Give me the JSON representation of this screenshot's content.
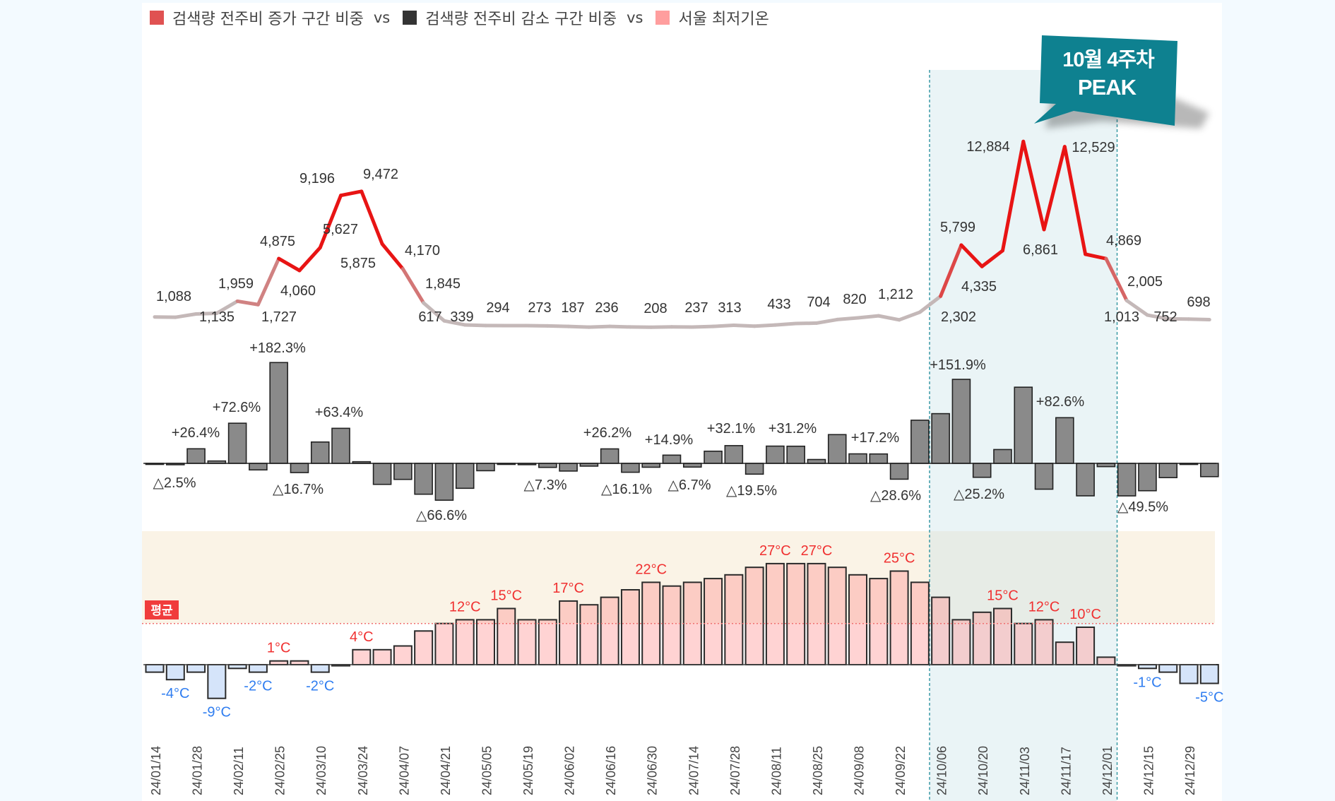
{
  "legend": {
    "items": [
      {
        "label": "검색량 전주비 증가 구간 비중",
        "color": "#e05252"
      },
      {
        "label": "검색량 전주비 감소 구간 비중",
        "color": "#333333"
      },
      {
        "label": "서울 최저기온",
        "color": "#ff9e9e"
      }
    ],
    "separator": "vs"
  },
  "callout": {
    "line1": "10월 4주차",
    "line2": "PEAK",
    "color": "#0e8190"
  },
  "avg_badge": {
    "label": "평균",
    "color": "#f03c3c"
  },
  "colors": {
    "line_high": "#e81414",
    "line_low": "#c4b8b8",
    "bar": "#8a8a8a",
    "temp_pos_label": "#f03030",
    "temp_neg_label": "#2f7df0",
    "highlight": "#3a9aa5"
  },
  "chart_data": [
    {
      "type": "line",
      "title": "검색량",
      "values": [
        883,
        861,
        1088,
        1135,
        1959,
        1727,
        4875,
        4060,
        5627,
        9196,
        9472,
        5875,
        4170,
        1845,
        617,
        339,
        294,
        292,
        287,
        273,
        235,
        187,
        236,
        198,
        181,
        208,
        194,
        237,
        313,
        252,
        331,
        433,
        463,
        704,
        820,
        960,
        685,
        1212,
        2302,
        5799,
        4335,
        5420,
        12884,
        6861,
        12529,
        5175,
        4869,
        2005,
        1013,
        752,
        737,
        698
      ],
      "labels": [
        null,
        null,
        "1,088",
        "1,135",
        "1,959",
        "1,727",
        "4,875",
        "4,060",
        "5,627",
        "9,196",
        "9,472",
        "5,875",
        "4,170",
        "1,845",
        "617",
        "339",
        "294",
        null,
        null,
        "273",
        null,
        "187",
        "236",
        null,
        null,
        "208",
        null,
        "237",
        "313",
        null,
        null,
        "433",
        null,
        "704",
        "820",
        null,
        null,
        "1,212",
        "2,302",
        "5,799",
        "4,335",
        null,
        "12,884",
        "6,861",
        "12,529",
        null,
        "4,869",
        "2,005",
        "1,013",
        "752",
        null,
        "698"
      ]
    },
    {
      "type": "bar",
      "title": "검색량 전주비 (%)",
      "values": [
        -0.5,
        -2.5,
        26.4,
        4.3,
        72.6,
        -11.8,
        182.3,
        -16.7,
        38.6,
        63.4,
        3.0,
        -38.0,
        -29.0,
        -55.8,
        -66.6,
        -45.1,
        -13.3,
        -0.7,
        -2.4,
        -7.3,
        -13.9,
        -5.0,
        26.2,
        -16.1,
        -7.0,
        14.9,
        -6.7,
        22.0,
        32.1,
        -19.5,
        31.2,
        31.0,
        7.0,
        52.0,
        17.2,
        17.0,
        -28.6,
        78.0,
        89.9,
        151.9,
        -25.2,
        25.0,
        137.7,
        -46.7,
        82.6,
        -58.7,
        -5.9,
        -58.8,
        -49.5,
        -25.8,
        -2.0,
        -24.0
      ],
      "labels": [
        null,
        "△2.5%",
        "+26.4%",
        null,
        "+72.6%",
        null,
        "+182.3%",
        "△16.7%",
        null,
        "+63.4%",
        null,
        null,
        null,
        null,
        "△66.6%",
        null,
        null,
        null,
        null,
        "△7.3%",
        null,
        null,
        "+26.2%",
        "△16.1%",
        null,
        "+14.9%",
        "△6.7%",
        null,
        "+32.1%",
        "△19.5%",
        "+31.2%",
        null,
        null,
        null,
        "+17.2%",
        null,
        "△28.6%",
        null,
        null,
        "+151.9%",
        "△25.2%",
        null,
        null,
        null,
        "+82.6%",
        null,
        null,
        null,
        "△49.5%",
        null,
        null,
        null
      ]
    },
    {
      "type": "bar",
      "title": "서울 최저기온 (°C)",
      "average": 11,
      "values": [
        -2,
        -4,
        -2,
        -9,
        -1,
        -2,
        1,
        1,
        -2,
        -0.3,
        4,
        4,
        5,
        9,
        11,
        12,
        12,
        15,
        12,
        12,
        17,
        16,
        18,
        20,
        22,
        21,
        22,
        23,
        24,
        26,
        27,
        27,
        27,
        26,
        24,
        23,
        25,
        22,
        18,
        12,
        14,
        15,
        11,
        12,
        6,
        10,
        2,
        -0.3,
        -1,
        -2,
        -5,
        -5
      ],
      "labels": [
        null,
        "-4°C",
        null,
        "-9°C",
        null,
        "-2°C",
        "1°C",
        null,
        "-2°C",
        null,
        "4°C",
        null,
        null,
        null,
        null,
        "12°C",
        null,
        "15°C",
        null,
        null,
        "17°C",
        null,
        null,
        null,
        "22°C",
        null,
        null,
        null,
        null,
        null,
        "27°C",
        null,
        "27°C",
        null,
        null,
        null,
        "25°C",
        null,
        null,
        null,
        null,
        "15°C",
        null,
        "12°C",
        null,
        "10°C",
        null,
        null,
        "-1°C",
        null,
        null,
        "-5°C"
      ]
    }
  ],
  "x_axis": {
    "tick_every": 2,
    "tick_labels": [
      "24/01/14",
      "24/01/28",
      "24/02/11",
      "24/02/25",
      "24/03/10",
      "24/03/24",
      "24/04/07",
      "24/04/21",
      "24/05/05",
      "24/05/19",
      "24/06/02",
      "24/06/16",
      "24/06/30",
      "24/07/14",
      "24/07/28",
      "24/08/11",
      "24/08/25",
      "24/09/08",
      "24/09/22",
      "24/10/06",
      "24/10/20",
      "24/11/03",
      "24/11/17",
      "24/12/01",
      "24/12/15",
      "24/12/29"
    ]
  },
  "highlight": {
    "from_week": 38,
    "to_week": 46
  }
}
